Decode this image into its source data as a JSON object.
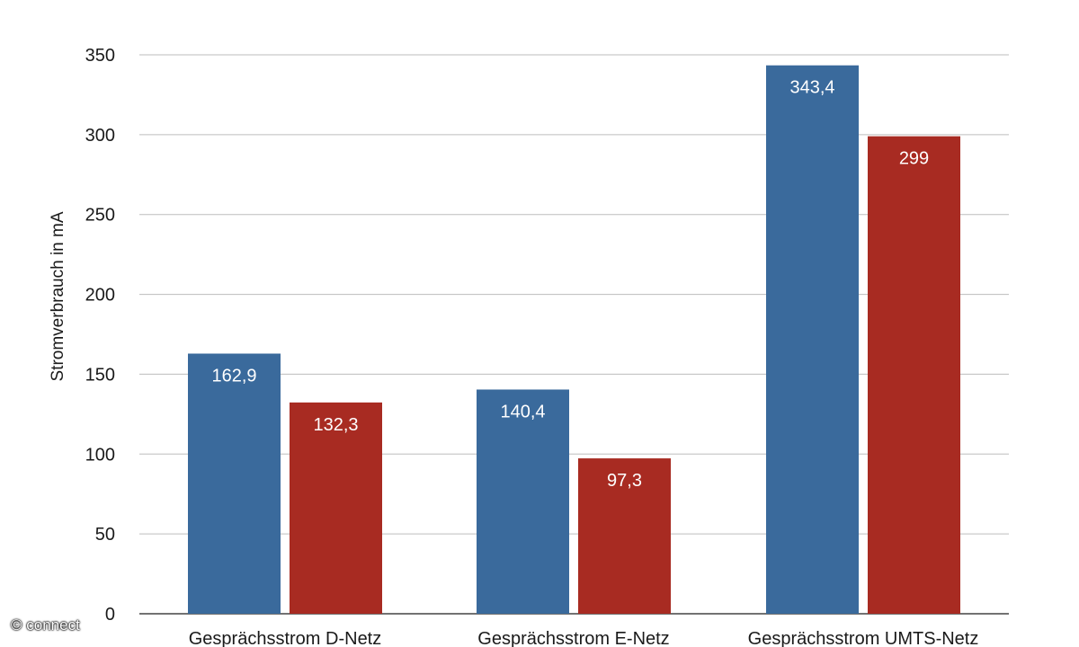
{
  "chart_data": {
    "type": "bar",
    "title": "",
    "xlabel": "",
    "ylabel": "Stromverbrauch in mA",
    "ylim": [
      0,
      350
    ],
    "yticks": [
      "0",
      "50",
      "100",
      "150",
      "200",
      "250",
      "300",
      "350"
    ],
    "grid": true,
    "categories": [
      "Gesprächsstrom D-Netz",
      "Gesprächsstrom E-Netz",
      "Gesprächsstrom UMTS-Netz"
    ],
    "series": [
      {
        "name": "",
        "color": "#3a6a9c",
        "values": [
          162.9,
          140.4,
          343.4
        ],
        "labels": [
          "162,9",
          "140,4",
          "343,4"
        ]
      },
      {
        "name": "",
        "color": "#a82b22",
        "values": [
          132.3,
          97.3,
          299
        ],
        "labels": [
          "132,3",
          "97,3",
          "299"
        ]
      }
    ]
  },
  "watermark": "© connect"
}
